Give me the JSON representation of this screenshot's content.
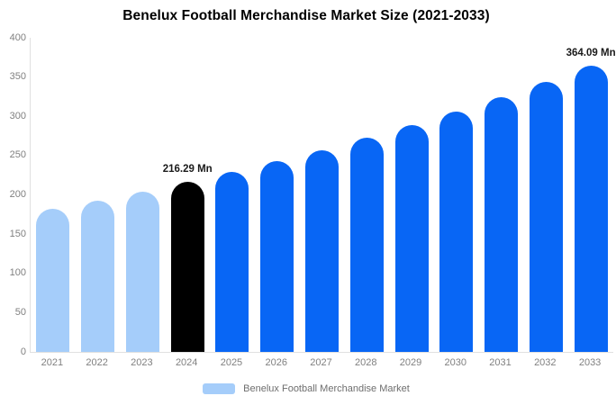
{
  "title": "Benelux Football Merchandise Market Size (2021-2033)",
  "legend": {
    "label": "Benelux Football Merchandise Market",
    "swatch_color": "#a5cdfa"
  },
  "colors": {
    "historical_bar": "#a5cdfa",
    "highlight_bar": "#000000",
    "forecast_bar": "#0866f5",
    "axis_line": "#e0e0e0",
    "tick_text": "#808080",
    "annotation_text": "#1a1a1a"
  },
  "chart_data": {
    "type": "bar",
    "title": "Benelux Football Merchandise Market Size (2021-2033)",
    "xlabel": "",
    "ylabel": "",
    "unit": "Mn",
    "ylim": [
      0,
      400
    ],
    "yticks": [
      0,
      50,
      100,
      150,
      200,
      250,
      300,
      350,
      400
    ],
    "grid": false,
    "legend_position": "bottom",
    "categories": [
      "2021",
      "2022",
      "2023",
      "2024",
      "2025",
      "2026",
      "2027",
      "2028",
      "2029",
      "2030",
      "2031",
      "2032",
      "2033"
    ],
    "values": [
      181.82,
      192.65,
      204.13,
      216.29,
      229.18,
      242.83,
      257.3,
      272.62,
      288.87,
      306.08,
      324.31,
      343.63,
      364.09
    ],
    "bar_colors": [
      "#a5cdfa",
      "#a5cdfa",
      "#a5cdfa",
      "#000000",
      "#0866f5",
      "#0866f5",
      "#0866f5",
      "#0866f5",
      "#0866f5",
      "#0866f5",
      "#0866f5",
      "#0866f5",
      "#0866f5"
    ],
    "annotations": [
      {
        "index": 3,
        "year": "2024",
        "text": "216.29 Mn"
      },
      {
        "index": 12,
        "year": "2033",
        "text": "364.09 Mn"
      }
    ]
  }
}
